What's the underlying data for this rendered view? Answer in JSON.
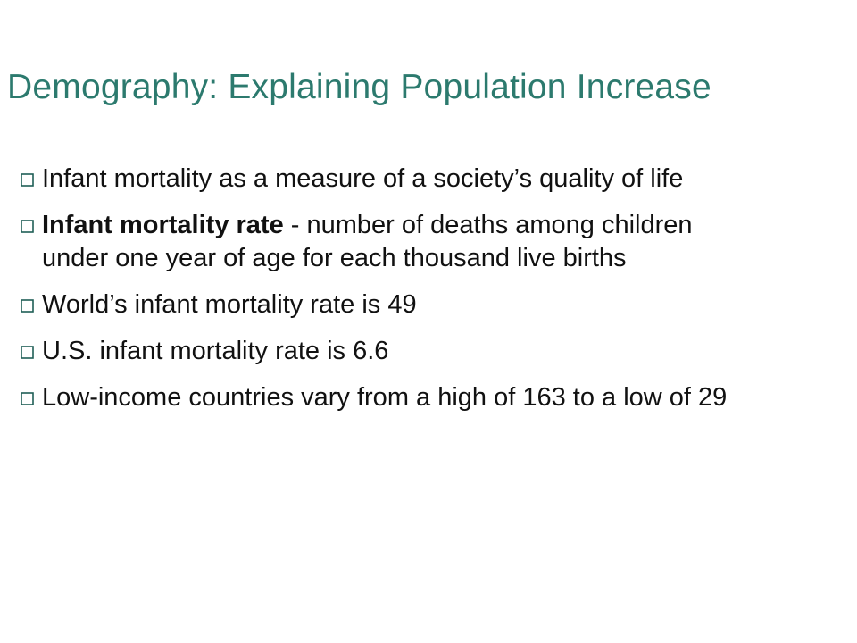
{
  "slide": {
    "title": "Demography: Explaining Population Increase",
    "accent_color": "#2c7a6e",
    "bullet_icon": "hollow-square-bullet-icon",
    "bullets": [
      {
        "text": "Infant mortality as a measure of a society’s quality of life"
      },
      {
        "term": "Infant mortality rate",
        "text": " - number of deaths among children under one year of age for each thousand live births"
      },
      {
        "text": "World’s infant mortality rate is 49"
      },
      {
        "text": "U.S. infant mortality rate is 6.6"
      },
      {
        "text": "Low-income countries vary from a high of 163 to a low of 29"
      }
    ]
  }
}
